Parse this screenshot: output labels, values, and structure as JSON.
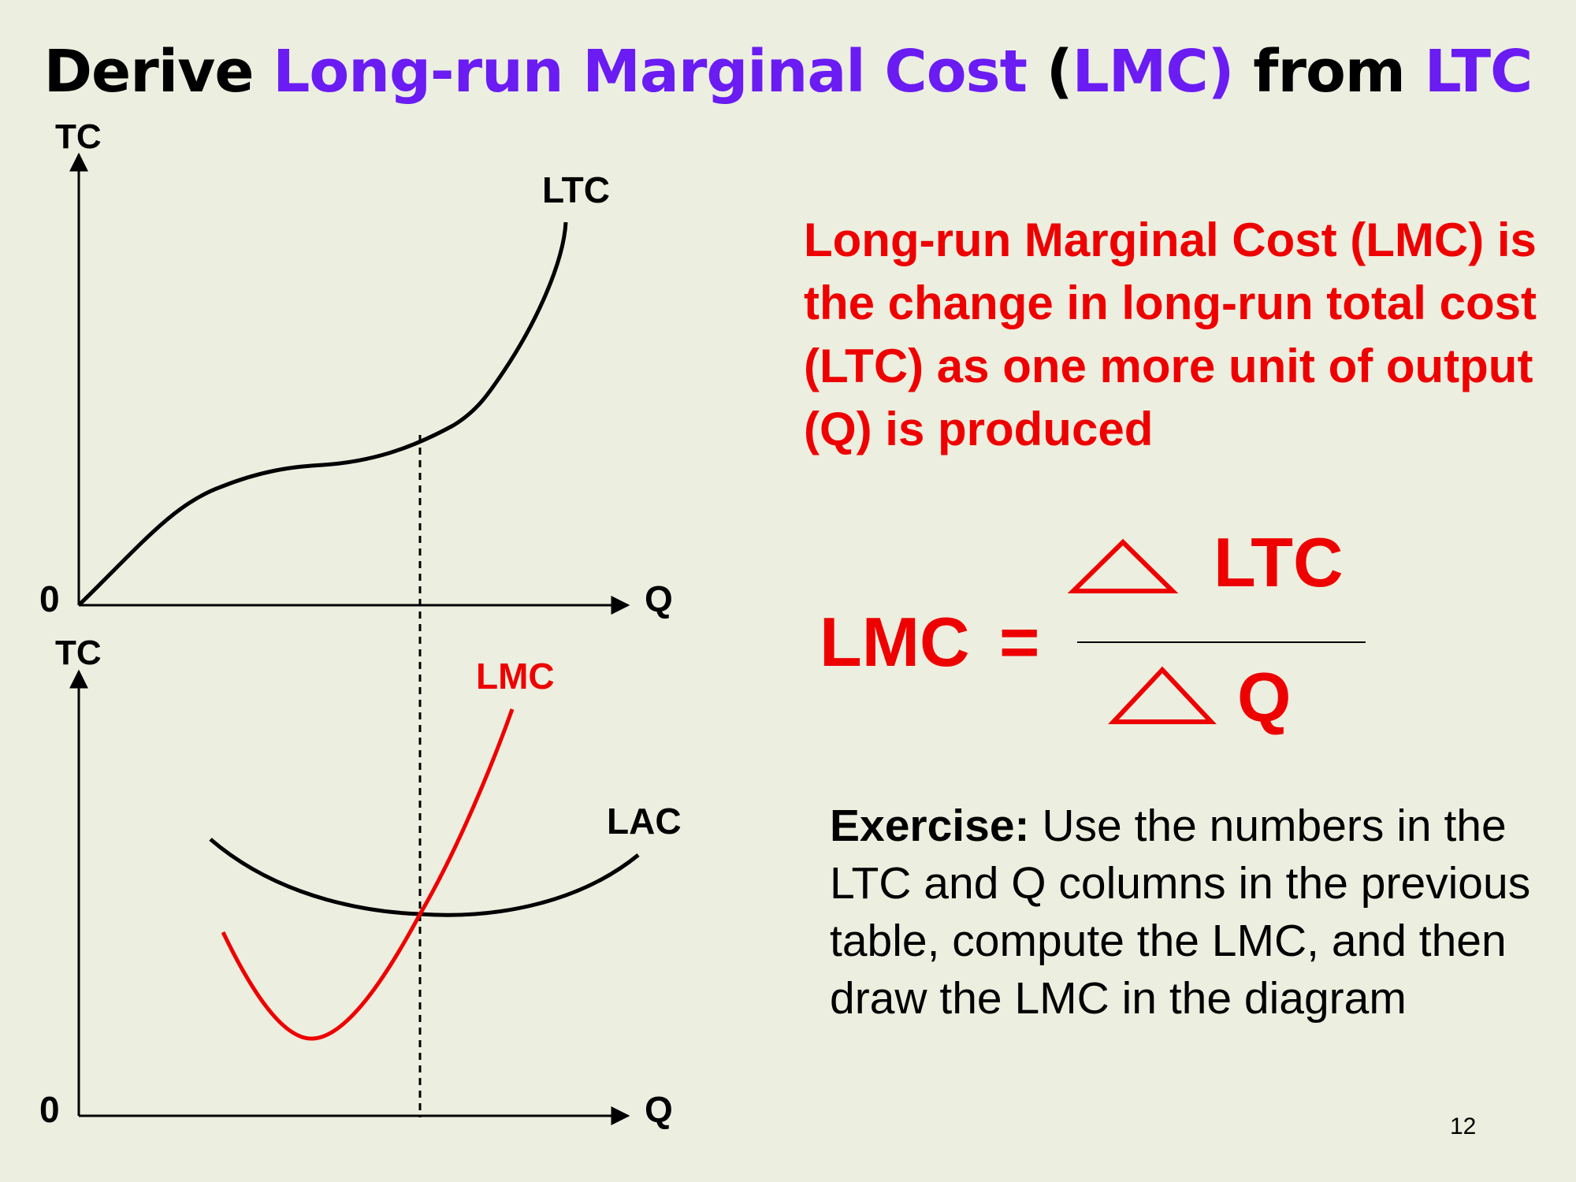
{
  "slide": {
    "title": {
      "part1": "Derive ",
      "part2": "Long-run Marginal Cost",
      "part3": " (",
      "part4": "LMC)",
      "part5": " from ",
      "part6": "LTC"
    },
    "definition": "Long-run Marginal Cost (LMC) is the change in long-run total cost (LTC) as one more unit of output (Q) is produced",
    "formula": {
      "lhs": "LMC",
      "equals": "=",
      "numerator": "LTC",
      "denominator": "Q"
    },
    "exercise": {
      "lead": "Exercise:",
      "body": " Use the numbers in the LTC and Q columns in the previous table, compute the LMC, and then draw the LMC in the diagram"
    },
    "page_number": "12"
  },
  "top_graph": {
    "y_axis_label": "TC",
    "x_axis_label": "Q",
    "origin_label": "0",
    "curve_label": "LTC"
  },
  "bottom_graph": {
    "y_axis_label": "TC",
    "x_axis_label": "Q",
    "origin_label": "0",
    "lmc_label": "LMC",
    "lac_label": "LAC"
  },
  "colors": {
    "accent_purple": "#6a1cf3",
    "accent_red": "#ee0000",
    "background": "#eceedf"
  }
}
